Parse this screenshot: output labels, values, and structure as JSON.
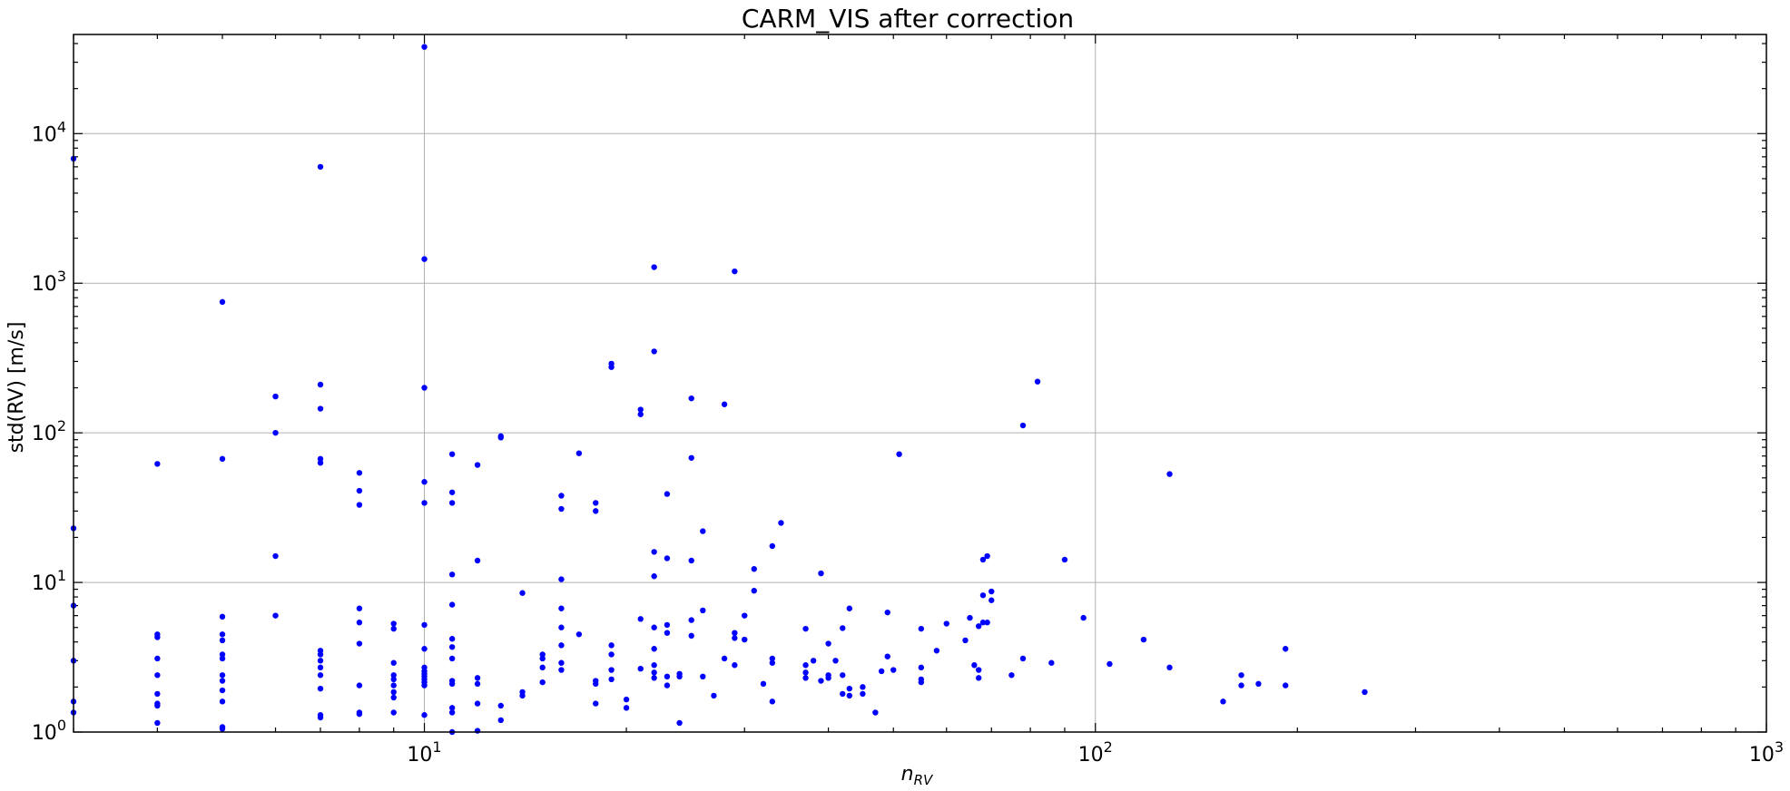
{
  "chart_data": {
    "type": "scatter",
    "title": "CARM_VIS after correction",
    "xlabel": "n_RV",
    "xlabel_main": "n",
    "xlabel_sub": "RV",
    "ylabel": "std(RV) [m/s]",
    "xscale": "log",
    "yscale": "log",
    "xlim": [
      3,
      1000
    ],
    "ylim": [
      1,
      46000
    ],
    "grid": true,
    "marker_color": "#0000ff",
    "x_major_ticks": [
      {
        "value": 10,
        "base": "10",
        "exp": "1"
      },
      {
        "value": 100,
        "base": "10",
        "exp": "2"
      },
      {
        "value": 1000,
        "base": "10",
        "exp": "3"
      }
    ],
    "y_major_ticks": [
      {
        "value": 1,
        "base": "10",
        "exp": "0"
      },
      {
        "value": 10,
        "base": "10",
        "exp": "1"
      },
      {
        "value": 100,
        "base": "10",
        "exp": "2"
      },
      {
        "value": 1000,
        "base": "10",
        "exp": "3"
      },
      {
        "value": 10000,
        "base": "10",
        "exp": "4"
      }
    ],
    "points": [
      [
        3,
        6800
      ],
      [
        3,
        23
      ],
      [
        3,
        7
      ],
      [
        3,
        3
      ],
      [
        3,
        1.6
      ],
      [
        3,
        1.35
      ],
      [
        4,
        62
      ],
      [
        4,
        4.5
      ],
      [
        4,
        4.3
      ],
      [
        4,
        3.1
      ],
      [
        4,
        2.4
      ],
      [
        4,
        1.8
      ],
      [
        4,
        1.55
      ],
      [
        4,
        1.5
      ],
      [
        4,
        1.15
      ],
      [
        5,
        750
      ],
      [
        5,
        67
      ],
      [
        5,
        5.9
      ],
      [
        5,
        4.5
      ],
      [
        5,
        4.1
      ],
      [
        5,
        3.3
      ],
      [
        5,
        3.1
      ],
      [
        5,
        2.4
      ],
      [
        5,
        2.2
      ],
      [
        5,
        1.9
      ],
      [
        5,
        1.6
      ],
      [
        5,
        1.08
      ],
      [
        5,
        1.05
      ],
      [
        6,
        175
      ],
      [
        6,
        100
      ],
      [
        6,
        15
      ],
      [
        6,
        6
      ],
      [
        7,
        6000
      ],
      [
        7,
        210
      ],
      [
        7,
        145
      ],
      [
        7,
        67
      ],
      [
        7,
        63
      ],
      [
        7,
        3.5
      ],
      [
        7,
        3.3
      ],
      [
        7,
        3
      ],
      [
        7,
        2.7
      ],
      [
        7,
        2.4
      ],
      [
        7,
        1.95
      ],
      [
        7,
        1.3
      ],
      [
        7,
        1.25
      ],
      [
        8,
        54
      ],
      [
        8,
        41
      ],
      [
        8,
        33
      ],
      [
        8,
        6.7
      ],
      [
        8,
        5.4
      ],
      [
        8,
        3.9
      ],
      [
        8,
        2.05
      ],
      [
        8,
        1.35
      ],
      [
        8,
        1.32
      ],
      [
        9,
        5.3
      ],
      [
        9,
        4.9
      ],
      [
        9,
        2.9
      ],
      [
        9,
        2.4
      ],
      [
        9,
        2.25
      ],
      [
        9,
        2.05
      ],
      [
        9,
        1.85
      ],
      [
        9,
        1.7
      ],
      [
        9,
        1.35
      ],
      [
        10,
        38000
      ],
      [
        10,
        1450
      ],
      [
        10,
        200
      ],
      [
        10,
        47
      ],
      [
        10,
        34
      ],
      [
        10,
        5.2
      ],
      [
        10,
        3.6
      ],
      [
        10,
        2.7
      ],
      [
        10,
        2.55
      ],
      [
        10,
        2.45
      ],
      [
        10,
        2.35
      ],
      [
        10,
        2.25
      ],
      [
        10,
        2.15
      ],
      [
        10,
        2.05
      ],
      [
        10,
        1.3
      ],
      [
        11,
        72
      ],
      [
        11,
        40
      ],
      [
        11,
        34
      ],
      [
        11,
        11.3
      ],
      [
        11,
        7.1
      ],
      [
        11,
        4.2
      ],
      [
        11,
        3.7
      ],
      [
        11,
        3.1
      ],
      [
        11,
        2.2
      ],
      [
        11,
        2.1
      ],
      [
        11,
        1.45
      ],
      [
        11,
        1.35
      ],
      [
        11,
        1.0
      ],
      [
        12,
        61
      ],
      [
        12,
        14
      ],
      [
        12,
        2.3
      ],
      [
        12,
        2.1
      ],
      [
        12,
        1.55
      ],
      [
        12,
        1.02
      ],
      [
        13,
        95
      ],
      [
        13,
        93
      ],
      [
        13,
        1.5
      ],
      [
        13,
        1.2
      ],
      [
        14,
        8.5
      ],
      [
        14,
        1.85
      ],
      [
        14,
        1.75
      ],
      [
        15,
        3.3
      ],
      [
        15,
        3.1
      ],
      [
        15,
        2.7
      ],
      [
        15,
        2.15
      ],
      [
        16,
        38
      ],
      [
        16,
        31
      ],
      [
        16,
        10.5
      ],
      [
        16,
        6.7
      ],
      [
        16,
        5
      ],
      [
        16,
        3.8
      ],
      [
        16,
        2.9
      ],
      [
        16,
        2.6
      ],
      [
        17,
        73
      ],
      [
        17,
        4.5
      ],
      [
        18,
        34
      ],
      [
        18,
        30
      ],
      [
        18,
        2.2
      ],
      [
        18,
        2.1
      ],
      [
        18,
        1.55
      ],
      [
        19,
        290
      ],
      [
        19,
        275
      ],
      [
        19,
        3.8
      ],
      [
        19,
        3.3
      ],
      [
        19,
        2.6
      ],
      [
        19,
        2.25
      ],
      [
        20,
        1.65
      ],
      [
        20,
        1.45
      ],
      [
        21,
        143
      ],
      [
        21,
        133
      ],
      [
        21,
        5.7
      ],
      [
        21,
        2.65
      ],
      [
        22,
        1280
      ],
      [
        22,
        350
      ],
      [
        22,
        16
      ],
      [
        22,
        11
      ],
      [
        22,
        5
      ],
      [
        22,
        3.6
      ],
      [
        22,
        2.8
      ],
      [
        22,
        2.5
      ],
      [
        22,
        2.3
      ],
      [
        23,
        39
      ],
      [
        23,
        14.5
      ],
      [
        23,
        5.2
      ],
      [
        23,
        4.6
      ],
      [
        23,
        2.35
      ],
      [
        23,
        2.05
      ],
      [
        24,
        2.45
      ],
      [
        24,
        2.35
      ],
      [
        24,
        1.15
      ],
      [
        25,
        170
      ],
      [
        25,
        68
      ],
      [
        25,
        14
      ],
      [
        25,
        5.6
      ],
      [
        25,
        4.4
      ],
      [
        26,
        22
      ],
      [
        26,
        6.5
      ],
      [
        26,
        2.35
      ],
      [
        27,
        1.75
      ],
      [
        28,
        155
      ],
      [
        28,
        3.1
      ],
      [
        29,
        1200
      ],
      [
        29,
        4.6
      ],
      [
        29,
        4.25
      ],
      [
        29,
        2.8
      ],
      [
        30,
        6
      ],
      [
        30,
        4.15
      ],
      [
        31,
        12.3
      ],
      [
        31,
        8.8
      ],
      [
        32,
        2.1
      ],
      [
        33,
        17.5
      ],
      [
        33,
        3.1
      ],
      [
        33,
        2.9
      ],
      [
        33,
        1.6
      ],
      [
        34,
        25
      ],
      [
        37,
        4.9
      ],
      [
        37,
        2.8
      ],
      [
        37,
        2.5
      ],
      [
        37,
        2.3
      ],
      [
        38,
        3
      ],
      [
        39,
        11.5
      ],
      [
        39,
        2.2
      ],
      [
        40,
        3.9
      ],
      [
        40,
        2.4
      ],
      [
        40,
        2.3
      ],
      [
        41,
        3
      ],
      [
        42,
        4.95
      ],
      [
        42,
        2.4
      ],
      [
        42,
        1.8
      ],
      [
        43,
        6.7
      ],
      [
        43,
        1.95
      ],
      [
        43,
        1.75
      ],
      [
        45,
        2
      ],
      [
        45,
        1.8
      ],
      [
        47,
        1.35
      ],
      [
        48,
        2.55
      ],
      [
        49,
        6.3
      ],
      [
        49,
        3.2
      ],
      [
        50,
        2.6
      ],
      [
        51,
        72
      ],
      [
        55,
        4.9
      ],
      [
        55,
        2.7
      ],
      [
        55,
        2.25
      ],
      [
        55,
        2.15
      ],
      [
        58,
        3.5
      ],
      [
        60,
        5.3
      ],
      [
        64,
        4.1
      ],
      [
        65,
        5.8
      ],
      [
        66,
        2.8
      ],
      [
        67,
        5.1
      ],
      [
        67,
        2.6
      ],
      [
        67,
        2.3
      ],
      [
        68,
        14.2
      ],
      [
        68,
        8.2
      ],
      [
        68,
        5.4
      ],
      [
        69,
        15
      ],
      [
        69,
        5.4
      ],
      [
        70,
        8.7
      ],
      [
        70,
        7.6
      ],
      [
        75,
        2.4
      ],
      [
        78,
        112
      ],
      [
        78,
        3.1
      ],
      [
        82,
        220
      ],
      [
        86,
        2.9
      ],
      [
        90,
        14.2
      ],
      [
        96,
        5.8
      ],
      [
        105,
        2.85
      ],
      [
        118,
        4.15
      ],
      [
        129,
        53
      ],
      [
        129,
        2.7
      ],
      [
        155,
        1.6
      ],
      [
        165,
        2.4
      ],
      [
        165,
        2.05
      ],
      [
        175,
        2.1
      ],
      [
        192,
        3.6
      ],
      [
        192,
        2.05
      ],
      [
        252,
        1.85
      ]
    ]
  }
}
